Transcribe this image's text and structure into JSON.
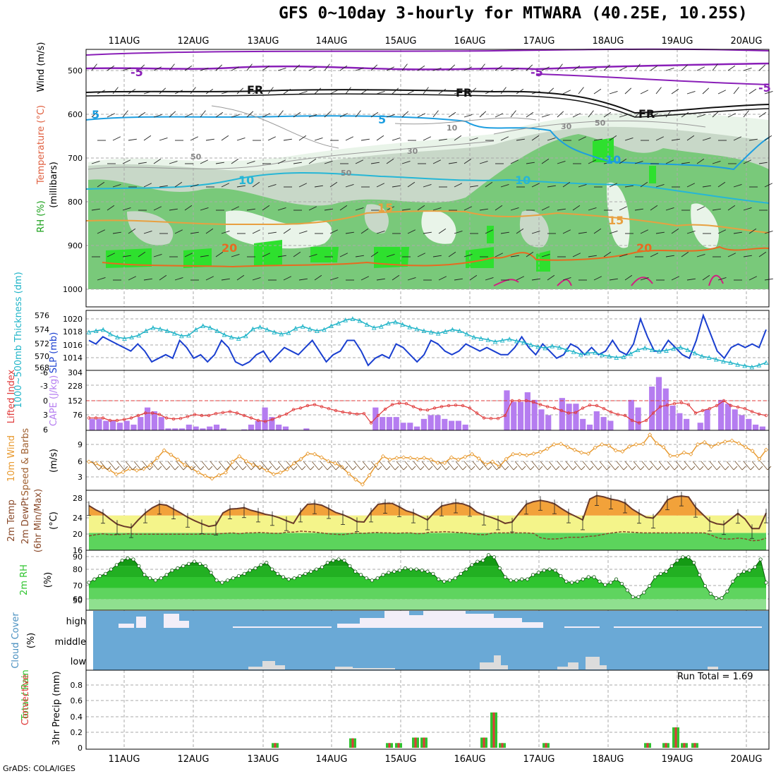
{
  "title": "GFS 0~10day 3-hourly for MTWARA (40.25E, 10.25S)",
  "credit": "GrADS: COLA/IGES",
  "dates": [
    "11AUG",
    "12AUG",
    "13AUG",
    "14AUG",
    "15AUG",
    "16AUG",
    "17AUG",
    "18AUG",
    "19AUG",
    "20AUG"
  ],
  "colors": {
    "cape": "#b57df0",
    "li": "#e03a3a",
    "slp": "#1a3fd0",
    "thick": "#20b4c8",
    "wind": "#e89a30",
    "temp_fill": "#f2a23a",
    "dew_line": "#8a4a2a",
    "rh": "#2fc42f",
    "cloud": "#6aa9d6",
    "precip_total": "#2fc42f",
    "precip_conv": "#e03a3a"
  },
  "panels": {
    "upper": {
      "label_wind": "Wind (m/s)",
      "label_temp": "Temperature (°C)",
      "label_rh": "RH (%)",
      "label_unit": "(millibars)",
      "y_ticks": [
        "500",
        "600",
        "700",
        "800",
        "900",
        "1000"
      ],
      "contour_labels": [
        "-5",
        "-5",
        "FR",
        "FR",
        "FR",
        "5",
        "5",
        "-5",
        "10",
        "10",
        "15",
        "15",
        "20",
        "20",
        "10",
        "30",
        "50",
        "50",
        "50",
        "30",
        "10"
      ]
    },
    "slp": {
      "label_slp": "SLP (mb)",
      "label_thick": "1000~500mb Thickness (dm)",
      "slp_ticks": [
        "1014",
        "1016",
        "1018",
        "1020"
      ],
      "thick_ticks": [
        "568",
        "570",
        "572",
        "574",
        "576"
      ]
    },
    "cape": {
      "label_li": "Lifted Index",
      "label_cape": "CAPE (J/kg)",
      "li_ticks": [
        "-6",
        "-3",
        "0",
        "3",
        "6"
      ],
      "cape_ticks": [
        "304",
        "228",
        "152",
        "76"
      ]
    },
    "wind": {
      "label1": "10m Wind",
      "label2": "Speed & Barbs",
      "unit": "(m/s)",
      "ticks": [
        "9",
        "6",
        "3"
      ]
    },
    "temp": {
      "label1": "2m Temp",
      "label2": "2m DewPt",
      "label3": "(6hr Min/Max)",
      "unit": "(°C)",
      "ticks": [
        "28",
        "24",
        "20",
        "16"
      ]
    },
    "rh": {
      "label": "2m RH",
      "unit": "(%)",
      "ticks": [
        "90",
        "80",
        "70",
        "60",
        "50"
      ]
    },
    "cloud": {
      "label": "Cloud Cover",
      "unit": "(%)",
      "levels": [
        "high",
        "middle",
        "low"
      ]
    },
    "precip": {
      "label1": "Total / Rain",
      "label2": "Convective",
      "label3": "3hr Precip (mm)",
      "ticks": [
        "0.8",
        "0.6",
        "0.4",
        "0.2",
        "0"
      ],
      "run_total": "Run Total = 1.69"
    }
  },
  "chart_data": [
    {
      "type": "line",
      "name": "SLP",
      "ylim": [
        1013,
        1021
      ],
      "values": [
        1017,
        1016.5,
        1017.5,
        1017,
        1016.5,
        1016,
        1015.5,
        1016.5,
        1015.5,
        1014,
        1014.5,
        1015,
        1014.5,
        1017,
        1016,
        1014.5,
        1015,
        1014,
        1015,
        1017,
        1016,
        1014,
        1013.5,
        1014,
        1015,
        1015.5,
        1014,
        1015,
        1016,
        1015.5,
        1015,
        1016,
        1017,
        1015.5,
        1014,
        1015,
        1015.5,
        1017,
        1017,
        1015.5,
        1013.5,
        1014.5,
        1015,
        1014.5,
        1016.5,
        1016,
        1015,
        1014,
        1015,
        1017,
        1016.5,
        1015.5,
        1015,
        1015.5,
        1016.5,
        1016,
        1015.5,
        1016,
        1015.5,
        1015,
        1015,
        1016,
        1017.5,
        1016,
        1015,
        1016.5,
        1015.5,
        1014.5,
        1015,
        1016.5,
        1016,
        1015,
        1016,
        1015,
        1015.5,
        1017,
        1015.5,
        1015,
        1016.5,
        1020,
        1017.5,
        1015.5,
        1015.5,
        1017,
        1016,
        1015,
        1014.5,
        1017,
        1020.5,
        1018,
        1015.5,
        1014.5,
        1016,
        1016.5,
        1016,
        1016.5,
        1016,
        1018.5
      ]
    },
    {
      "type": "line",
      "name": "Thickness",
      "ylim": [
        568,
        577
      ],
      "values": [
        573.8,
        574,
        574.2,
        573.5,
        573,
        572.8,
        573,
        573.3,
        574,
        574.5,
        574.3,
        574,
        573.6,
        573.2,
        573.3,
        574.2,
        574.8,
        574.5,
        574,
        573.4,
        573,
        572.8,
        573.2,
        574.3,
        574.6,
        574.2,
        573.8,
        573.5,
        573.7,
        574.4,
        574.7,
        574.3,
        574,
        574.2,
        574.8,
        575.2,
        575.7,
        575.9,
        575.6,
        575,
        574.5,
        574.7,
        575.2,
        575.4,
        575,
        574.6,
        574.3,
        574,
        573.8,
        573.6,
        573.9,
        574.2,
        574,
        573.5,
        573,
        572.8,
        572.6,
        572.3,
        572.5,
        572.7,
        572.4,
        572.2,
        571.8,
        571.5,
        571.3,
        571.6,
        571.4,
        571,
        570.7,
        570.3,
        570.5,
        570.6,
        570.2,
        570,
        569.8,
        569.9,
        570.4,
        571,
        571.3,
        571,
        570.8,
        570.9,
        571.2,
        571.4,
        571,
        570.5,
        570,
        569.8,
        569.5,
        569.2,
        569,
        568.7,
        568.5,
        568.3,
        568.6,
        569
      ]
    },
    {
      "type": "bar",
      "name": "CAPE",
      "ylim": [
        0,
        304
      ],
      "values": [
        60,
        60,
        50,
        50,
        40,
        50,
        30,
        70,
        120,
        100,
        70,
        10,
        10,
        10,
        30,
        20,
        10,
        20,
        30,
        10,
        0,
        0,
        5,
        30,
        50,
        120,
        70,
        30,
        20,
        0,
        0,
        10,
        0,
        0,
        0,
        0,
        0,
        0,
        0,
        0,
        0,
        120,
        70,
        70,
        70,
        40,
        40,
        20,
        60,
        80,
        80,
        60,
        50,
        50,
        30,
        0,
        0,
        0,
        0,
        0,
        210,
        150,
        150,
        200,
        160,
        110,
        80,
        0,
        170,
        140,
        140,
        60,
        30,
        100,
        70,
        50,
        0,
        0,
        160,
        120,
        0,
        230,
        280,
        220,
        130,
        90,
        60,
        0,
        40,
        110,
        0,
        160,
        140,
        110,
        80,
        60,
        30,
        20
      ]
    },
    {
      "type": "line",
      "name": "Lifted Index",
      "ylim": [
        6,
        -6
      ],
      "values": [
        3.5,
        3.5,
        3.5,
        4,
        4,
        3.8,
        3.5,
        3,
        2.5,
        2.5,
        2.8,
        3.5,
        3.7,
        3.6,
        3.2,
        2.8,
        3,
        3,
        2.6,
        2.4,
        2.2,
        2.5,
        3,
        3.5,
        4,
        4.2,
        3.8,
        3.2,
        2.7,
        1.8,
        1.5,
        1,
        0.8,
        1.2,
        1.6,
        2,
        2.3,
        2.5,
        2.7,
        2.6,
        4.5,
        3,
        1.7,
        0.8,
        0.5,
        0.6,
        1.2,
        1.8,
        1.9,
        1.5,
        1.2,
        1,
        0.9,
        1,
        1.5,
        2.5,
        3.5,
        3.6,
        3.6,
        3,
        0,
        0,
        0,
        0.3,
        0.8,
        1.2,
        1.5,
        2,
        2.5,
        2.4,
        1.5,
        0.9,
        1,
        1.6,
        2.3,
        2.8,
        3,
        4,
        4.5,
        4,
        2.5,
        1.2,
        0.9,
        0.6,
        0.4,
        0.8,
        2.5,
        2,
        1.6,
        1,
        0,
        1,
        1.3,
        1.6,
        2.2,
        2.7,
        3
      ]
    },
    {
      "type": "line",
      "name": "10m Wind Speed",
      "ylim": [
        1,
        11
      ],
      "values": [
        5.8,
        5.5,
        4.8,
        4.3,
        3.5,
        3.9,
        4.5,
        4.2,
        4.5,
        5.2,
        6.5,
        7.9,
        7.1,
        6.2,
        5.2,
        4.6,
        3.8,
        3.2,
        2.7,
        3.3,
        3.8,
        5.8,
        6.8,
        5.9,
        5.2,
        4.8,
        4.2,
        3.5,
        3.8,
        4.4,
        5.5,
        6.3,
        7.3,
        7.2,
        6.6,
        5.9,
        5.5,
        4.8,
        3.6,
        2.5,
        1.6,
        3.3,
        5.2,
        6.8,
        6.2,
        6.5,
        6.6,
        6.5,
        6.3,
        6.5,
        6.2,
        5.6,
        5.6,
        6.6,
        6.2,
        6.7,
        7.2,
        6.4,
        5.3,
        5.8,
        4.9,
        6.3,
        7.2,
        7.2,
        7,
        7.3,
        7.6,
        8.2,
        9,
        9.1,
        8.5,
        8,
        7.5,
        7.3,
        8.4,
        9,
        8.8,
        7.9,
        7.7,
        8.6,
        9,
        9.1,
        10.8,
        9.2,
        8.5,
        6.9,
        6.9,
        7.5,
        7.2,
        9,
        9.4,
        8.6,
        9.1,
        9.5,
        9.7,
        9.2,
        8.5,
        7.8,
        6.3,
        8
      ]
    },
    {
      "type": "area",
      "name": "2m Temp",
      "ylim": [
        16,
        29.5
      ],
      "values": [
        26.3,
        25.3,
        24.5,
        23.2,
        22,
        21.5,
        21.2,
        23,
        24.6,
        25.8,
        26.6,
        26.4,
        25.5,
        24.6,
        23.6,
        22.8,
        22.1,
        21.5,
        21.8,
        24.6,
        25.5,
        25.6,
        25.8,
        25.2,
        24.8,
        24.3,
        24,
        23.5,
        22.8,
        22.2,
        24.8,
        26.6,
        26.7,
        26.4,
        25.6,
        24.7,
        24.2,
        23.5,
        22.6,
        22.5,
        24.8,
        26.6,
        26.8,
        26.8,
        26,
        25.1,
        24.6,
        23.8,
        23,
        24.8,
        26.2,
        26.6,
        26.9,
        26.7,
        26.1,
        24.8,
        24.1,
        23.6,
        23,
        22.2,
        22.5,
        24.6,
        26.6,
        27.2,
        27.5,
        27.2,
        26.7,
        25.6,
        24.6,
        23.8,
        23,
        27.8,
        28.6,
        28.3,
        27.8,
        27.5,
        26.9,
        25.5,
        24.5,
        23.6,
        23.4,
        25.2,
        27.6,
        28.3,
        28.5,
        28.3,
        25.9,
        24.3,
        22.7,
        22.1,
        21.9,
        23.2,
        24.5,
        23.2,
        21,
        21,
        24.6
      ]
    },
    {
      "type": "line",
      "name": "2m DewPt",
      "ylim": [
        16,
        29.5
      ],
      "values": [
        19.3,
        19.6,
        19.8,
        19.6,
        19.6,
        19.7,
        19.8,
        19.7,
        19.7,
        19.7,
        19.7,
        19.7,
        19.7,
        19.7,
        19.7,
        19.7,
        19.7,
        19.7,
        19.7,
        19.8,
        19.9,
        20,
        19.8,
        20,
        20,
        20.1,
        20,
        19.9,
        19.9,
        20.2,
        20.2,
        20.4,
        20.3,
        20.2,
        20,
        19.8,
        19.7,
        19.6,
        19.8,
        20,
        19.9,
        20,
        20.1,
        20,
        20,
        19.9,
        20,
        20,
        19.8,
        19.9,
        20.2,
        20.2,
        20.3,
        20.2,
        20.1,
        20,
        19.8,
        19.6,
        19.6,
        20,
        20,
        20,
        20,
        20,
        20,
        19.9,
        18.9,
        18.6,
        18.6,
        18.7,
        19,
        19,
        19,
        19.2,
        19.3,
        19.6,
        19.9,
        20.1,
        20.3,
        20.2,
        20.1,
        20,
        20,
        20,
        20,
        20,
        20,
        20,
        20,
        20,
        20,
        19.5,
        18.8,
        18.6,
        18.6,
        18.8,
        18.6,
        18.2,
        18.3,
        18.8
      ]
    },
    {
      "type": "area",
      "name": "2m RH",
      "ylim": [
        40,
        93
      ],
      "values": [
        65,
        68,
        71,
        73,
        77,
        81,
        85,
        87,
        86,
        80,
        72,
        69,
        67,
        69,
        72,
        76,
        78,
        80,
        82,
        84,
        82,
        80,
        74,
        67,
        65,
        67,
        69,
        71,
        73,
        76,
        78,
        81,
        83,
        77,
        73,
        70,
        68,
        69,
        71,
        73,
        75,
        77,
        79,
        83,
        85,
        86,
        85,
        80,
        75,
        72,
        69,
        67,
        69,
        72,
        74,
        75,
        76,
        78,
        77,
        77,
        76,
        75,
        73,
        68,
        66,
        67,
        69,
        73,
        77,
        81,
        84,
        85,
        90,
        88,
        78,
        70,
        67,
        67,
        68,
        68,
        72,
        74,
        76,
        77,
        76,
        71,
        66,
        65,
        66,
        68,
        70,
        70,
        66,
        63,
        65,
        68,
        64,
        58,
        52,
        52,
        56,
        62,
        70,
        73,
        75,
        80,
        85,
        88,
        88,
        83,
        72,
        62,
        55,
        51,
        51,
        57,
        66,
        72,
        75,
        76,
        79,
        86,
        65
      ]
    },
    {
      "type": "bar",
      "name": "3hr Precip",
      "ylim": [
        0,
        0.9
      ],
      "categories": [
        "13AUG",
        "14AUG",
        "15AUG",
        "15AUG",
        "16AUG",
        "16AUG",
        "17AUG",
        "18AUG",
        "19AUG",
        "19AUG"
      ],
      "values": [
        0.06,
        0.12,
        0.06,
        0.13,
        0.13,
        0.45,
        0.06,
        0.06,
        0.26,
        0.06
      ]
    }
  ]
}
